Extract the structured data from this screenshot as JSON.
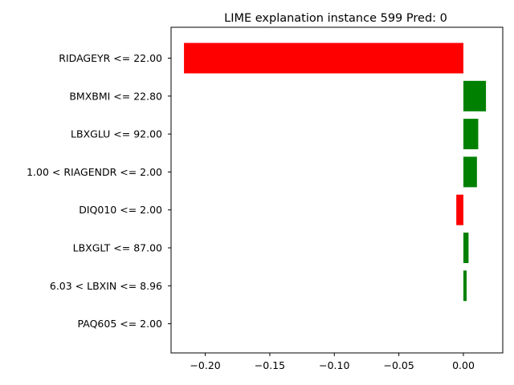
{
  "chart_data": {
    "type": "bar",
    "orientation": "horizontal",
    "title": "LIME explanation instance 599 Pred: 0",
    "xlabel": "",
    "ylabel": "",
    "categories": [
      "RIDAGEYR <= 22.00",
      "BMXBMI <= 22.80",
      "LBXGLU <= 92.00",
      "1.00 < RIAGENDR <= 2.00",
      "DIQ010 <= 2.00",
      "LBXGLT <= 87.00",
      "6.03 < LBXIN <= 8.96",
      "PAQ605 <= 2.00"
    ],
    "values": [
      -0.2165,
      0.0175,
      0.0115,
      0.0105,
      -0.0055,
      0.004,
      0.0025,
      0.0
    ],
    "xlim": [
      -0.2265,
      0.0305
    ],
    "xticks": [
      -0.2,
      -0.15,
      -0.1,
      -0.05,
      0.0
    ],
    "xtick_labels": [
      "−0.20",
      "−0.15",
      "−0.10",
      "−0.05",
      "0.00"
    ],
    "colors": {
      "positive": "#008000",
      "negative": "#ff0000"
    },
    "grid": false
  }
}
